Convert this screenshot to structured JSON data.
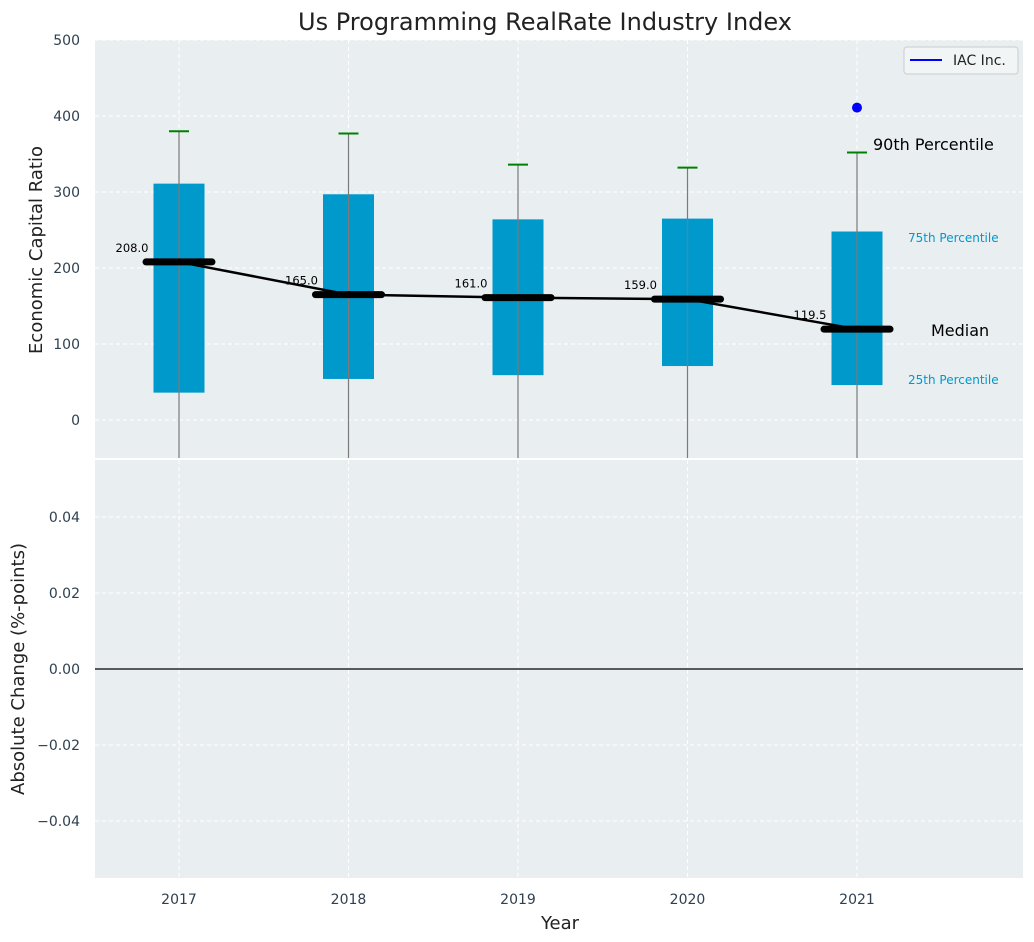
{
  "chart_data": {
    "title": "Us Programming RealRate Industry Index",
    "xlabel": "Year",
    "categories": [
      "2017",
      "2018",
      "2019",
      "2020",
      "2021"
    ],
    "top_panel": {
      "type": "box",
      "ylabel": "Economic Capital Ratio",
      "ylim": [
        -50,
        500
      ],
      "yticks": [
        "0",
        "100",
        "200",
        "300",
        "400",
        "500"
      ],
      "p25": [
        36,
        54,
        59,
        71,
        46
      ],
      "median": [
        208.0,
        165.0,
        161.0,
        159.0,
        119.5
      ],
      "median_labels": [
        "208.0",
        "165.0",
        "161.0",
        "159.0",
        "119.5"
      ],
      "p75": [
        311,
        297,
        264,
        265,
        248
      ],
      "p90": [
        380,
        377,
        336,
        332,
        352
      ],
      "company_points": [
        {
          "x": "2021",
          "y": 411
        }
      ],
      "legend": {
        "label": "IAC Inc.",
        "placement": "top-right"
      },
      "annotations": {
        "p90": "90th Percentile",
        "p75": "75th Percentile",
        "median": "Median",
        "p25": "25th Percentile"
      }
    },
    "bottom_panel": {
      "type": "line",
      "ylabel": "Absolute Change (%-points)",
      "ylim": [
        -0.055,
        0.055
      ],
      "yticks": [
        "−0.04",
        "−0.02",
        "0.00",
        "0.02",
        "0.04"
      ],
      "reference_line": 0
    },
    "grid": true,
    "colors": {
      "box": "#0099cc",
      "whisker": "#008000",
      "median": "#000000",
      "company": "#0000ff",
      "background": "#e9eef0"
    }
  }
}
